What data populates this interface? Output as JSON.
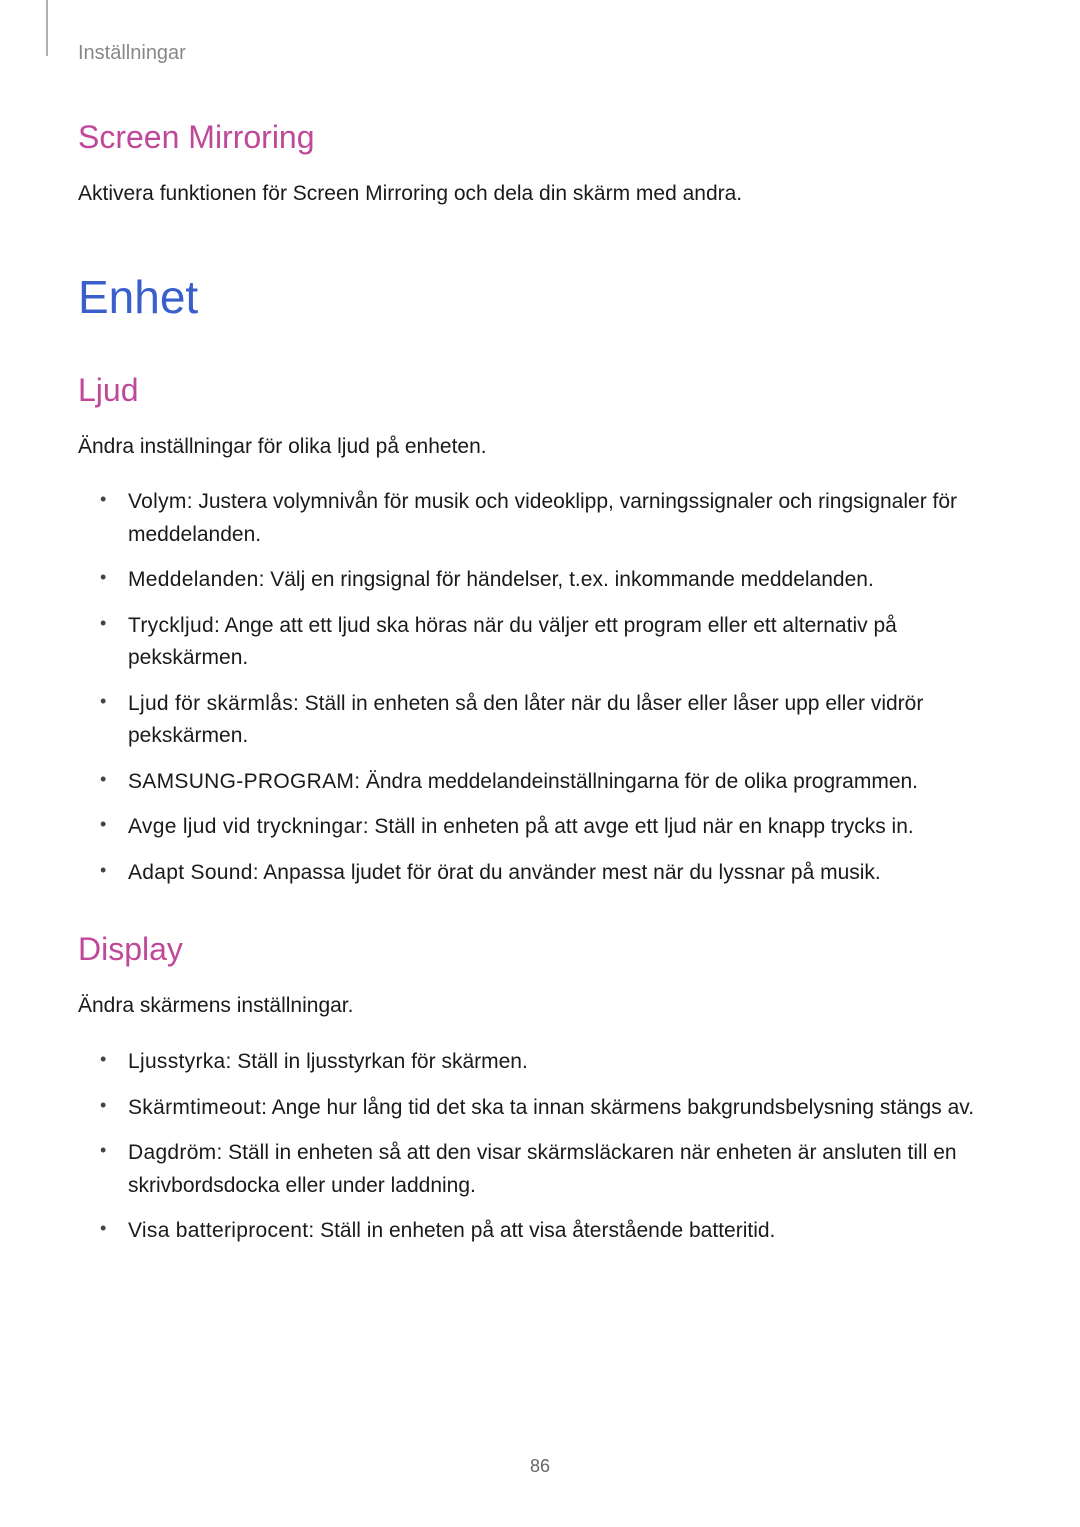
{
  "colors": {
    "heading_h1": "#3a5fcd",
    "heading_h2": "#c04898",
    "body_text": "#1a1a1a",
    "breadcrumb": "#888888",
    "page_number": "#666666",
    "background": "#ffffff",
    "header_line": "#b0b0b0"
  },
  "typography": {
    "h1_size": 46,
    "h2_size": 32,
    "body_size": 21,
    "breadcrumb_size": 20,
    "page_number_size": 18
  },
  "breadcrumb": "Inställningar",
  "page_number": "86",
  "sections": {
    "screen_mirroring": {
      "title": "Screen Mirroring",
      "body": "Aktivera funktionen för Screen Mirroring och dela din skärm med andra."
    },
    "enhet": {
      "title": "Enhet"
    },
    "ljud": {
      "title": "Ljud",
      "intro": "Ändra inställningar för olika ljud på enheten.",
      "items": [
        {
          "label": "Volym",
          "text": ": Justera volymnivån för musik och videoklipp, varningssignaler och ringsignaler för meddelanden."
        },
        {
          "label": "Meddelanden",
          "text": ": Välj en ringsignal för händelser, t.ex. inkommande meddelanden."
        },
        {
          "label": "Tryckljud",
          "text": ": Ange att ett ljud ska höras när du väljer ett program eller ett alternativ på pekskärmen."
        },
        {
          "label": "Ljud för skärmlås",
          "text": ": Ställ in enheten så den låter när du låser eller låser upp eller vidrör pekskärmen."
        },
        {
          "label": "SAMSUNG-PROGRAM",
          "text": ": Ändra meddelandeinställningarna för de olika programmen."
        },
        {
          "label": "Avge ljud vid tryckningar",
          "text": ": Ställ in enheten på att avge ett ljud när en knapp trycks in."
        },
        {
          "label": "Adapt Sound",
          "text": ": Anpassa ljudet för örat du använder mest när du lyssnar på musik."
        }
      ]
    },
    "display": {
      "title": "Display",
      "intro": "Ändra skärmens inställningar.",
      "items": [
        {
          "label": "Ljusstyrka",
          "text": ": Ställ in ljusstyrkan för skärmen."
        },
        {
          "label": "Skärmtimeout",
          "text": ": Ange hur lång tid det ska ta innan skärmens bakgrundsbelysning stängs av."
        },
        {
          "label": "Dagdröm",
          "text": ": Ställ in enheten så att den visar skärmsläckaren när enheten är ansluten till en skrivbordsdocka eller under laddning."
        },
        {
          "label": "Visa batteriprocent",
          "text": ": Ställ in enheten på att visa återstående batteritid."
        }
      ]
    }
  }
}
